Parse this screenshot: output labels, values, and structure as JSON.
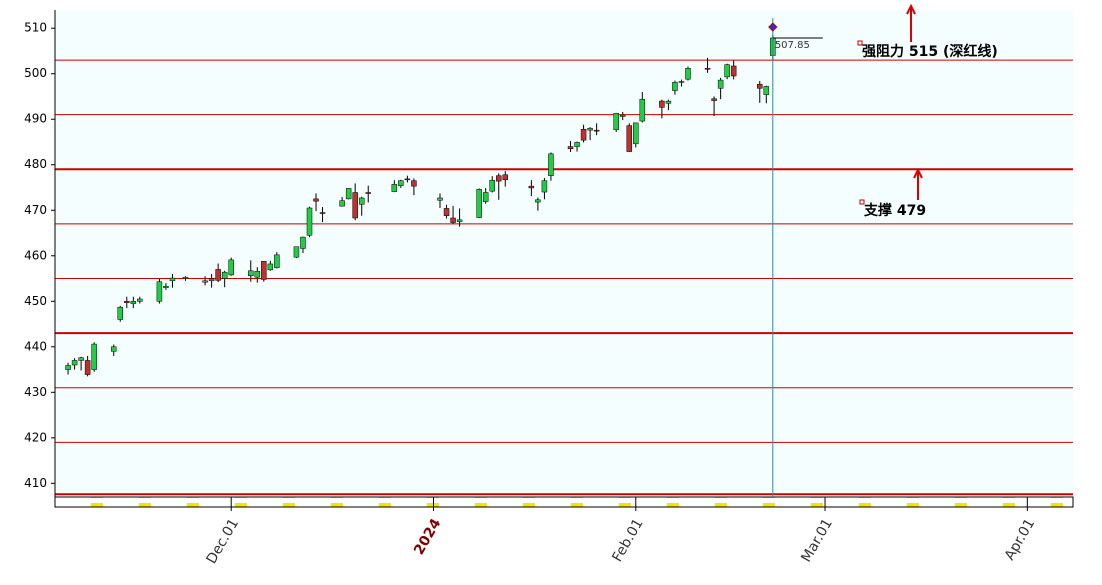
{
  "chart_data": {
    "type": "candlestick",
    "x": [
      "2023-11-06",
      "2023-11-07",
      "2023-11-08",
      "2023-11-09",
      "2023-11-10",
      "2023-11-13",
      "2023-11-14",
      "2023-11-15",
      "2023-11-16",
      "2023-11-17",
      "2023-11-20",
      "2023-11-21",
      "2023-11-22",
      "2023-11-24",
      "2023-11-27",
      "2023-11-28",
      "2023-11-29",
      "2023-11-30",
      "2023-12-01",
      "2023-12-04",
      "2023-12-05",
      "2023-12-06",
      "2023-12-07",
      "2023-12-08",
      "2023-12-11",
      "2023-12-12",
      "2023-12-13",
      "2023-12-14",
      "2023-12-15",
      "2023-12-18",
      "2023-12-19",
      "2023-12-20",
      "2023-12-21",
      "2023-12-22",
      "2023-12-26",
      "2023-12-27",
      "2023-12-28",
      "2023-12-29",
      "2024-01-02",
      "2024-01-03",
      "2024-01-04",
      "2024-01-05",
      "2024-01-08",
      "2024-01-09",
      "2024-01-10",
      "2024-01-11",
      "2024-01-12",
      "2024-01-16",
      "2024-01-17",
      "2024-01-18",
      "2024-01-19",
      "2024-01-22",
      "2024-01-23",
      "2024-01-24",
      "2024-01-25",
      "2024-01-26",
      "2024-01-29",
      "2024-01-30",
      "2024-01-31",
      "2024-02-01",
      "2024-02-02",
      "2024-02-05",
      "2024-02-06",
      "2024-02-07",
      "2024-02-08",
      "2024-02-09",
      "2024-02-12",
      "2024-02-13",
      "2024-02-14",
      "2024-02-15",
      "2024-02-16",
      "2024-02-20",
      "2024-02-21",
      "2024-02-22"
    ],
    "open": [
      435,
      436,
      437,
      437,
      435,
      439,
      446,
      450,
      449.5,
      450,
      450,
      453,
      454.5,
      455,
      454.2,
      454.5,
      457,
      455,
      455.8,
      455.6,
      455.3,
      458.8,
      456.9,
      457.4,
      459.7,
      461.6,
      464.5,
      472.5,
      469.5,
      470.9,
      472.5,
      473.9,
      471.3,
      473.9,
      474.1,
      475.4,
      476.9,
      476.5,
      472.2,
      470.4,
      468.3,
      467.5,
      468.4,
      471.9,
      474.2,
      477.6,
      477.8,
      475.3,
      471.8,
      474,
      477.6,
      484,
      484,
      487.8,
      487.6,
      487.6,
      487.7,
      490.6,
      488.6,
      484.6,
      489.6,
      494,
      493.5,
      496.3,
      498.1,
      498.8,
      501.2,
      494.5,
      496.8,
      499.3,
      501.7,
      497.7,
      495.4,
      504
    ],
    "high": [
      436.5,
      437.5,
      437.8,
      438,
      441,
      440.5,
      449,
      451,
      451,
      451,
      455,
      454,
      456,
      455.5,
      455.5,
      456,
      458.3,
      456.7,
      459.6,
      459,
      457.5,
      458.8,
      458.9,
      460.8,
      462,
      464.2,
      470.8,
      473.7,
      470.7,
      472.9,
      474.9,
      475.9,
      472.98,
      475.4,
      476.6,
      476.7,
      477.6,
      477,
      473.7,
      471.2,
      470.96,
      470.4,
      474.8,
      474.9,
      477.5,
      478.1,
      478.6,
      476.6,
      472.8,
      477.1,
      482.7,
      485.2,
      485.1,
      488.8,
      488.3,
      489.1,
      491.4,
      491.6,
      489.1,
      489.2,
      496,
      494.3,
      494.3,
      498.5,
      498.7,
      501.6,
      503.5,
      495,
      499.1,
      502.2,
      502.9,
      498.4,
      497.4,
      508.5
    ],
    "low": [
      433.9,
      435,
      434.8,
      433.5,
      434.5,
      438,
      445.5,
      448.5,
      448.5,
      449.5,
      449.5,
      452.5,
      453,
      454.5,
      453.5,
      453,
      454.2,
      453.1,
      455.6,
      454.3,
      454.1,
      454.3,
      456.7,
      457.2,
      459.5,
      460.6,
      464.1,
      469.8,
      467.4,
      470.8,
      472.4,
      467.8,
      468.8,
      471.7,
      473.98,
      474.9,
      476.1,
      473.3,
      470.5,
      468.2,
      467,
      466.4,
      468.3,
      471.4,
      473.9,
      472.3,
      475.2,
      473.1,
      469.9,
      472.4,
      476.5,
      482.8,
      482.9,
      484.9,
      485.4,
      486.5,
      487.2,
      489.8,
      482.8,
      483.8,
      489.3,
      490.2,
      492,
      495.4,
      497.2,
      498.5,
      500.2,
      490.7,
      494.4,
      498.8,
      498.75,
      493.6,
      493.5,
      503
    ],
    "close": [
      435.9,
      437,
      437.6,
      433.9,
      440.6,
      440,
      448.7,
      449.7,
      450,
      450.5,
      454.3,
      453.3,
      455.1,
      455.3,
      454.5,
      454.9,
      454.6,
      456.4,
      459.1,
      456.7,
      456.6,
      454.8,
      458.2,
      460.2,
      461.99,
      464.1,
      470.5,
      472,
      469.3,
      472.1,
      474.8,
      468.3,
      472.7,
      473.7,
      475.7,
      476.5,
      476.7,
      475.3,
      472.7,
      468.8,
      467.3,
      467.9,
      474.6,
      473.9,
      476.6,
      476.4,
      476.7,
      474.9,
      472.3,
      476.5,
      482.4,
      483.5,
      484.9,
      485.4,
      488,
      487.4,
      491.3,
      490.9,
      482.9,
      489.2,
      494.4,
      492.6,
      493.98,
      498.1,
      498.3,
      501.2,
      500.98,
      494.1,
      498.6,
      502,
      499.5,
      496.8,
      497.2,
      507.85
    ],
    "up_color": "#22cc44",
    "down_color": "#c03030",
    "xlim": [
      "2023-11-04",
      "2024-04-08"
    ],
    "xticks": [
      {
        "value": "2023-12-01",
        "label": "Dec.01"
      },
      {
        "value": "2024-01-01",
        "label": "2024"
      },
      {
        "value": "2024-02-01",
        "label": "Feb.01"
      },
      {
        "value": "2024-03-01",
        "label": "Mar.01"
      },
      {
        "value": "2024-04-01",
        "label": "Apr.01"
      }
    ],
    "ylim": [
      407,
      514
    ],
    "yticks": [
      410,
      420,
      430,
      440,
      450,
      460,
      470,
      480,
      490,
      500,
      510
    ],
    "levels": [
      {
        "value": 503,
        "style": "thin"
      },
      {
        "value": 491,
        "style": "thin"
      },
      {
        "value": 479,
        "style": "thick"
      },
      {
        "value": 467,
        "style": "thin"
      },
      {
        "value": 455,
        "style": "thin"
      },
      {
        "value": 443,
        "style": "thick"
      },
      {
        "value": 431,
        "style": "thin"
      },
      {
        "value": 419,
        "style": "thin"
      },
      {
        "value": 407.6,
        "style": "thick"
      }
    ],
    "level_color": "#cc0000",
    "last_price": 507.85,
    "annotations": [
      {
        "text": "强阻力 515 (深红线)"
      },
      {
        "text": "支撑 479"
      }
    ]
  }
}
